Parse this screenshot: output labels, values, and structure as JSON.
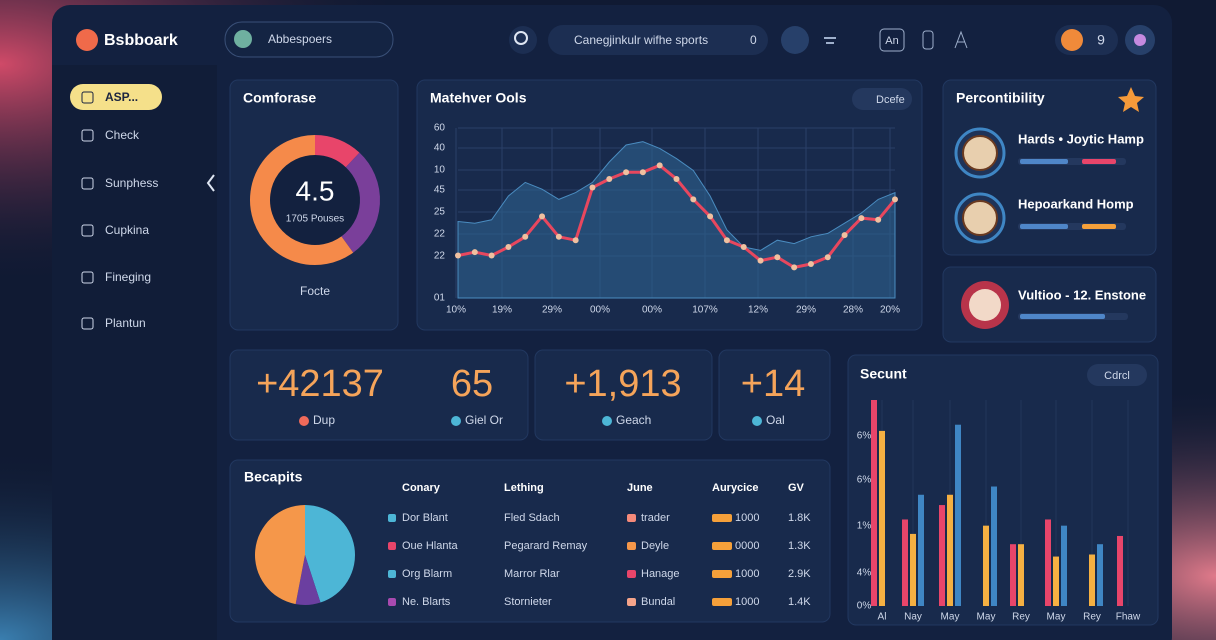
{
  "header": {
    "logo": "Bsbboark",
    "profile_search": "Abbespoers",
    "search_placeholder": "Canegjinkulr wifhe sports",
    "search_badge": "0",
    "icon_label": "An",
    "notification_count": "9"
  },
  "sidebar": {
    "items": [
      "ASP...",
      "Check",
      "Sunphess",
      "Cupkina",
      "Fineging",
      "Plantun"
    ]
  },
  "donut_card": {
    "title": "Comforase",
    "value": "4.5",
    "caption": "1705 Pouses",
    "footer": "Focte",
    "chart": {
      "type": "donut",
      "values": [
        12,
        28,
        60
      ],
      "colors": [
        "#e8456a",
        "#7a3f9a",
        "#f58a4a"
      ]
    }
  },
  "line_card": {
    "title": "Matehver Ools",
    "button": "Dcefe",
    "chart": {
      "type": "line",
      "ylim": [
        0,
        100
      ],
      "y_labels": [
        "60",
        "40",
        "10",
        "45",
        "25",
        "22",
        "22",
        "01"
      ],
      "x_labels": [
        "10%",
        "19%",
        "29%",
        "00%",
        "00%",
        "107%",
        "12%",
        "29%",
        "28%",
        "20%"
      ],
      "area": {
        "color": "#2e6390",
        "values": [
          45,
          44,
          46,
          60,
          68,
          64,
          58,
          62,
          68,
          80,
          90,
          92,
          88,
          82,
          75,
          60,
          40,
          30,
          28,
          34,
          32,
          36,
          38,
          44,
          50,
          58,
          62
        ]
      },
      "line": {
        "color": "#e8475e",
        "values": [
          25,
          27,
          25,
          30,
          36,
          48,
          36,
          34,
          65,
          70,
          74,
          74,
          78,
          70,
          58,
          48,
          34,
          30,
          22,
          24,
          18,
          20,
          24,
          37,
          47,
          46,
          58
        ]
      }
    }
  },
  "stats": [
    {
      "value": "+42137",
      "label": "Dup"
    },
    {
      "value": "65",
      "label": "Giel Or"
    },
    {
      "value": "+1,913",
      "label": "Geach"
    },
    {
      "value": "+14",
      "label": "Oal"
    }
  ],
  "table_card": {
    "title": "Becapits",
    "pie": {
      "type": "pie",
      "values": [
        45,
        8,
        47
      ],
      "colors": [
        "#4db6d6",
        "#6b3fa0",
        "#f5974a"
      ]
    },
    "columns": [
      "Conary",
      "Lething",
      "June",
      "Aurycice",
      "GV"
    ],
    "rows": [
      [
        "Dor Blant",
        "Fled Sdach",
        "trader",
        "1000",
        "1.8K"
      ],
      [
        "Oue Hlanta",
        "Pegarard Remay",
        "Deyle",
        "0000",
        "1.3K"
      ],
      [
        "Org Blarm",
        "Marror Rlar",
        "Hanage",
        "1000",
        "2.9K"
      ],
      [
        "Ne. Blarts",
        "Stornieter",
        "Bundal",
        "1000",
        "1.4K"
      ]
    ]
  },
  "percontibility": {
    "title": "Percontibility",
    "items": [
      "Hards • Joytic Hamp",
      "Hepoarkand Homp"
    ]
  },
  "feature_card": {
    "title": "Vultioo - 12. Enstone"
  },
  "bar_card": {
    "title": "Secunt",
    "button": "Cdrcl",
    "chart": {
      "type": "bar",
      "ylim": [
        0,
        100
      ],
      "y_labels": [
        "6%",
        "6%",
        "1%",
        "4%",
        "0%"
      ],
      "categories": [
        "Al",
        "Nay",
        "May",
        "May",
        "Rey",
        "May",
        "Rey",
        "Fhaw"
      ],
      "series": [
        {
          "color": "#e8456a",
          "values": [
            100,
            42,
            49,
            null,
            30,
            42,
            null,
            34
          ]
        },
        {
          "color": "#f5b042",
          "values": [
            85,
            35,
            54,
            39,
            30,
            24,
            25,
            null
          ]
        },
        {
          "color": "#3f86c4",
          "values": [
            null,
            54,
            88,
            58,
            null,
            39,
            30,
            null
          ]
        }
      ]
    }
  }
}
